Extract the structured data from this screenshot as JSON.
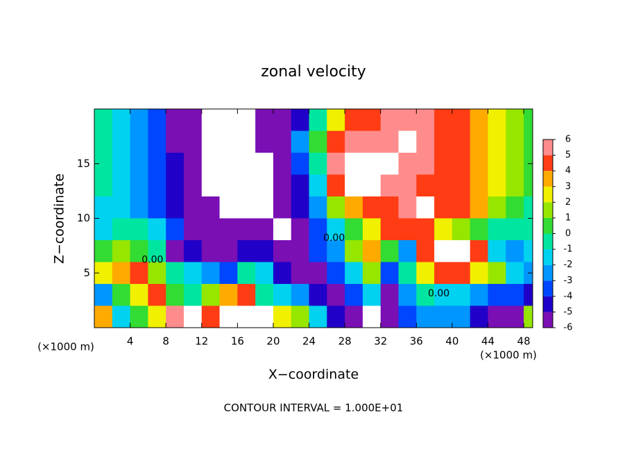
{
  "chart_data": {
    "type": "filled-contour",
    "title": "zonal velocity",
    "x_label": "X−coordinate",
    "y_label": "Z−coordinate",
    "x_unit": "(×1000 m)",
    "footer": "CONTOUR INTERVAL = 1.000E+01",
    "xlim": [
      0,
      49
    ],
    "ylim": [
      0,
      20
    ],
    "xticks": [
      4,
      8,
      12,
      16,
      20,
      24,
      28,
      32,
      36,
      40,
      44,
      48
    ],
    "yticks": [
      5,
      10,
      15
    ],
    "x_edges": [
      0,
      2,
      4,
      6,
      8,
      10,
      12,
      14,
      16,
      18,
      20,
      22,
      24,
      26,
      28,
      30,
      32,
      34,
      36,
      38,
      40,
      42,
      44,
      46,
      48,
      50
    ],
    "y_edges": [
      20,
      18,
      16,
      14,
      12,
      10,
      8,
      6,
      4,
      2,
      0
    ],
    "z": [
      [
        0,
        -1,
        -2,
        -3,
        -5,
        -6,
        -8,
        -8,
        -8,
        -6,
        -5,
        -4,
        0,
        3,
        5,
        5,
        6,
        6,
        6,
        5,
        5,
        4,
        3,
        2,
        1
      ],
      [
        0,
        -1,
        -2,
        -3,
        -5,
        -6,
        -8,
        -8,
        -8,
        -6,
        -5,
        -2,
        1,
        5,
        6,
        6,
        6,
        7,
        6,
        5,
        5,
        4,
        3,
        2,
        1
      ],
      [
        0,
        -1,
        -2,
        -3,
        -4,
        -6,
        -8,
        -8,
        -8,
        -7,
        -5,
        -3,
        0,
        6,
        8,
        8,
        7,
        6,
        6,
        5,
        5,
        4,
        3,
        2,
        1
      ],
      [
        0,
        -1,
        -2,
        -3,
        -4,
        -6,
        -7,
        -8,
        -8,
        -8,
        -6,
        -4,
        -1,
        5,
        7,
        7,
        6,
        6,
        5,
        5,
        5,
        4,
        3,
        2,
        1
      ],
      [
        -1,
        -1,
        -2,
        -3,
        -4,
        -5,
        -6,
        -8,
        -8,
        -8,
        -6,
        -4,
        -2,
        2,
        4,
        5,
        5,
        6,
        7,
        5,
        5,
        4,
        2,
        1,
        0
      ],
      [
        -1,
        0,
        0,
        -1,
        -3,
        -5,
        -6,
        -6,
        -5,
        -6,
        -8,
        -5,
        -3,
        -1,
        1,
        3,
        5,
        5,
        5,
        3,
        2,
        1,
        0,
        0,
        0
      ],
      [
        1,
        2,
        1,
        0,
        -5,
        -4,
        -6,
        -5,
        -4,
        -4,
        -5,
        -5,
        -3,
        -2,
        2,
        4,
        1,
        -2,
        5,
        8,
        7,
        5,
        -1,
        -2,
        -1
      ],
      [
        3,
        4,
        5,
        2,
        0,
        -1,
        -2,
        -3,
        0,
        -1,
        -4,
        -5,
        -6,
        -3,
        -1,
        2,
        -3,
        0,
        3,
        5,
        5,
        3,
        2,
        -1,
        -2
      ],
      [
        -2,
        1,
        3,
        5,
        1,
        0,
        2,
        4,
        5,
        0,
        -1,
        -2,
        -4,
        -5,
        -3,
        -1,
        -5,
        -2,
        0,
        -1,
        -1,
        -2,
        -3,
        -3,
        -4
      ],
      [
        4,
        -1,
        1,
        3,
        6,
        7,
        5,
        7,
        8,
        8,
        3,
        2,
        -1,
        -4,
        -6,
        8,
        -6,
        -3,
        -2,
        -2,
        -2,
        -4,
        -5,
        -6,
        2
      ]
    ],
    "colorbar": {
      "lim": [
        -6,
        6
      ],
      "ticks": [
        -6,
        -5,
        -4,
        -3,
        -2,
        -1,
        0,
        1,
        2,
        3,
        4,
        5,
        6
      ],
      "colors": [
        "#7a0fb4",
        "#2000c8",
        "#0046ff",
        "#0096ff",
        "#00d2f0",
        "#00e6a0",
        "#32dc32",
        "#96e600",
        "#f0f000",
        "#ffaa00",
        "#ff3c14",
        "#ff8c8c"
      ],
      "out_of_range_color": "#ffffff"
    },
    "annotations": [
      {
        "text": "0.00",
        "x": 38.5,
        "y": 3.1
      },
      {
        "text": "0.00",
        "x": 26.8,
        "y": 8.2
      },
      {
        "text": "0.00",
        "x": 6.5,
        "y": 6.2
      }
    ]
  }
}
